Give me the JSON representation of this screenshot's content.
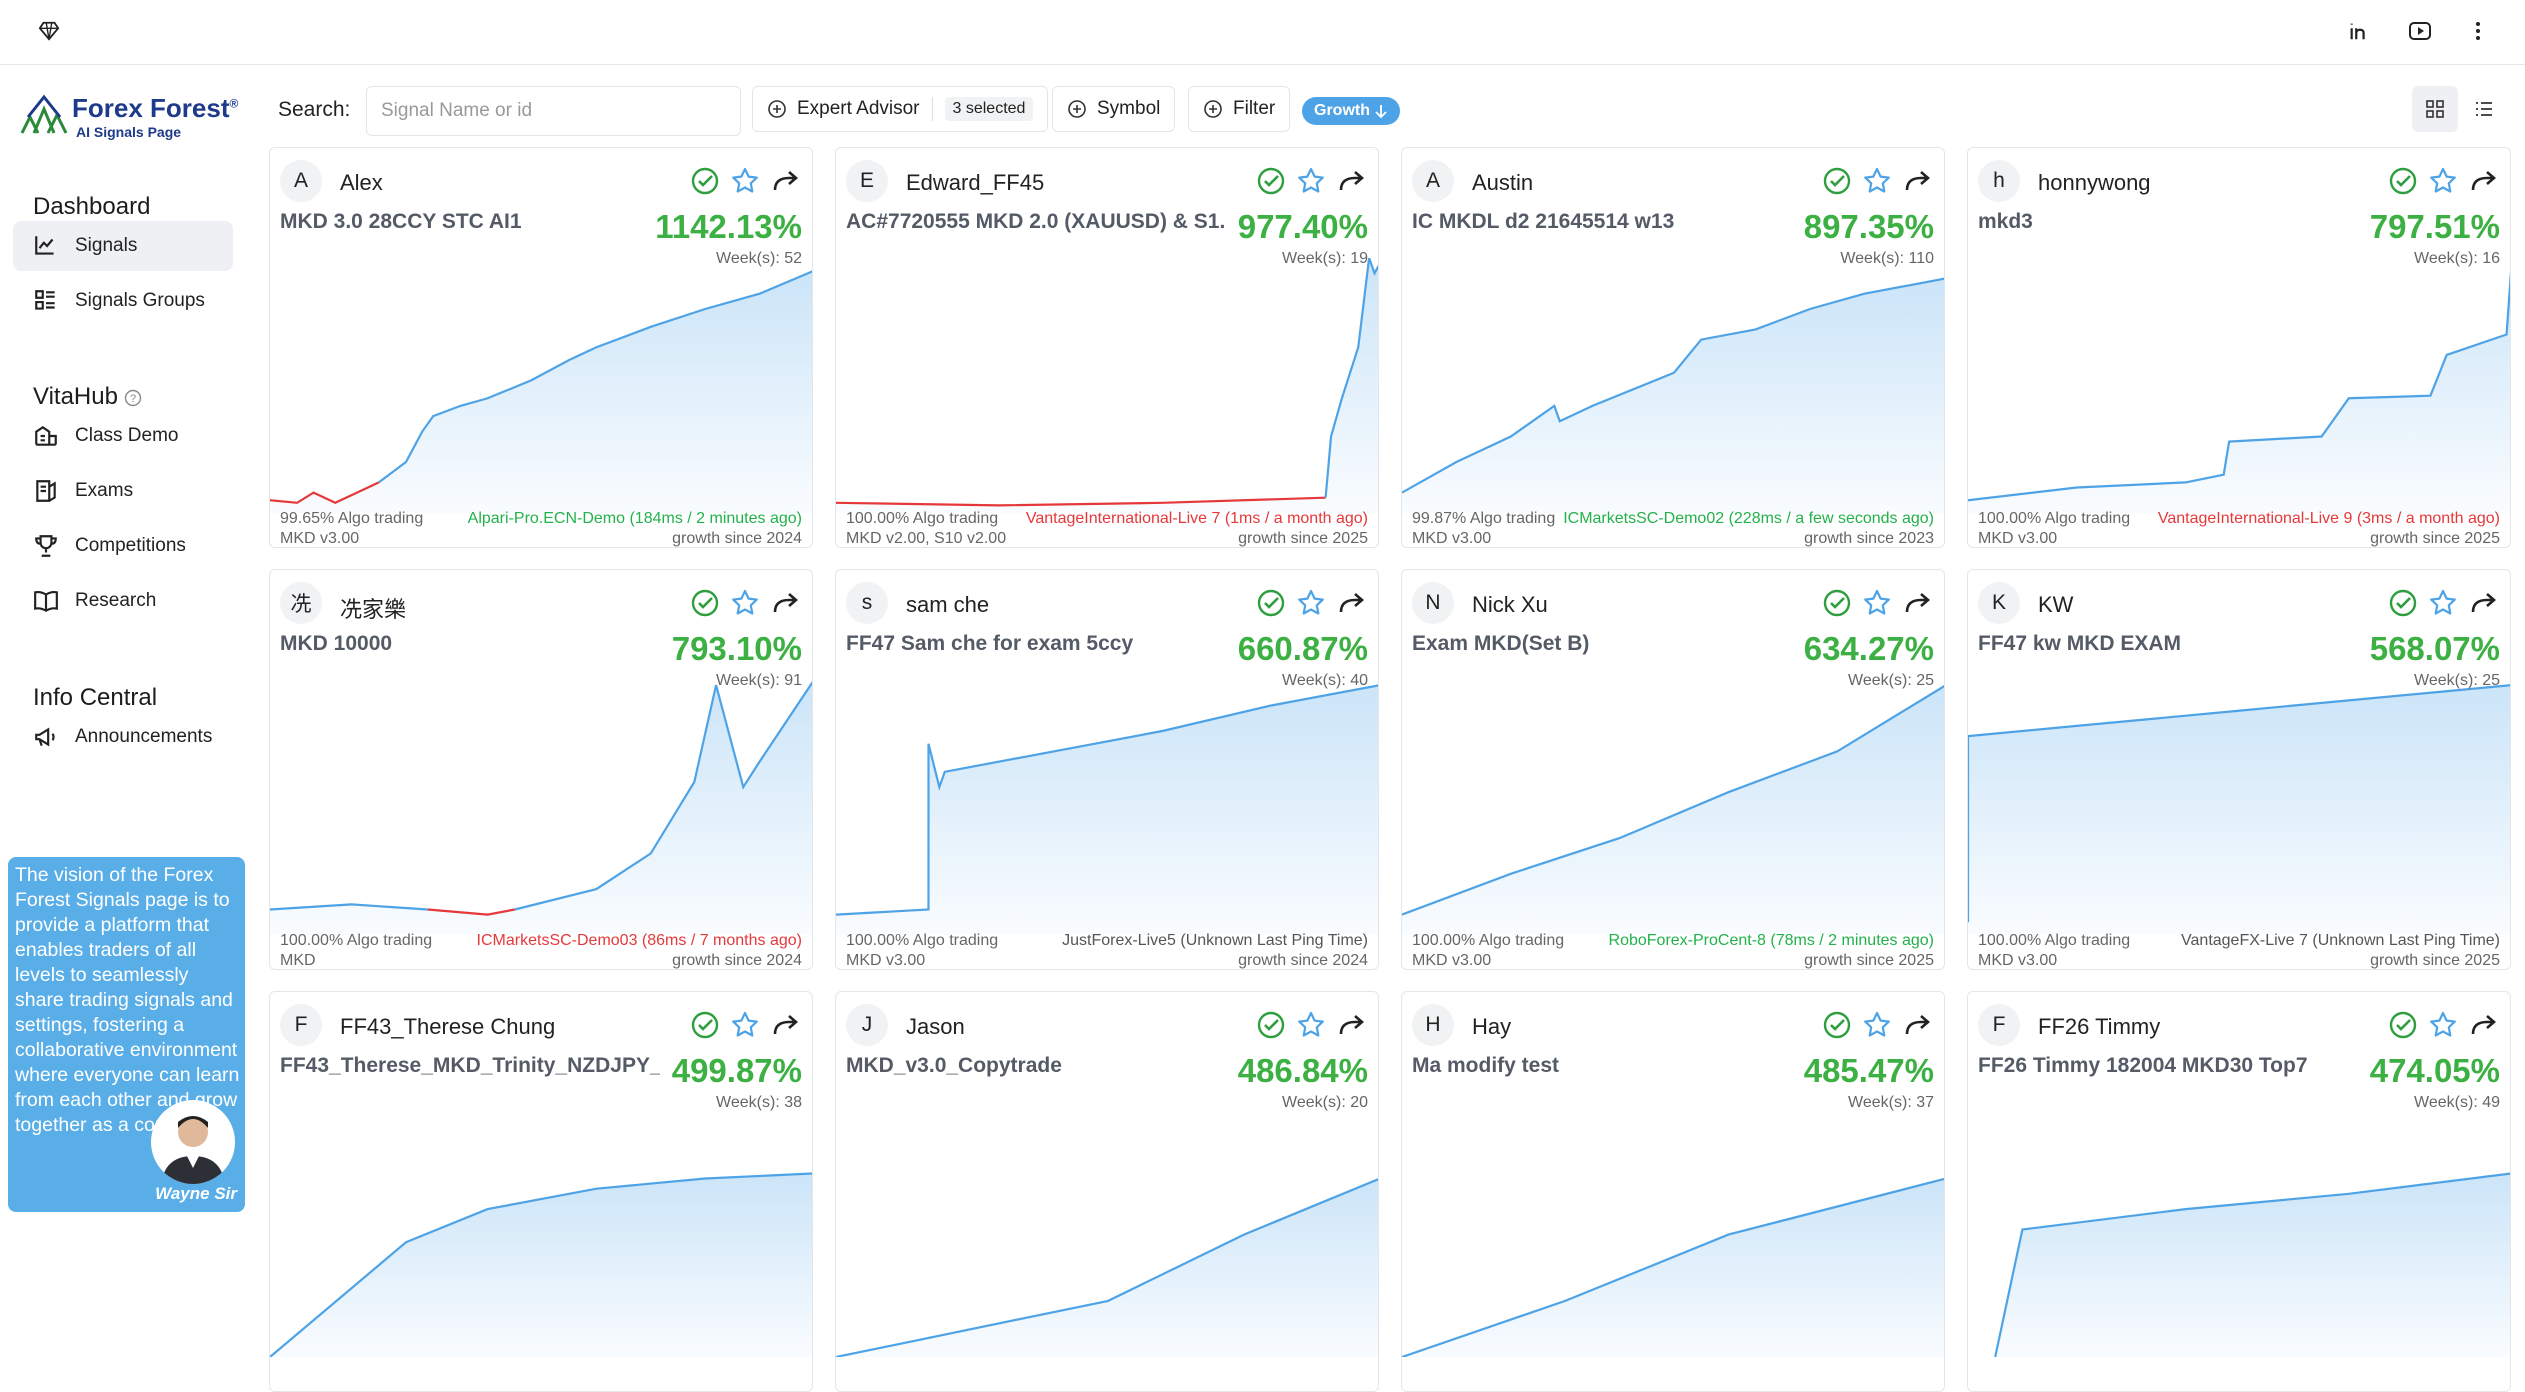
{
  "sidebar": {
    "logo": {
      "name": "Forex Forest",
      "mark": "®",
      "tagline": "AI Signals Page"
    },
    "sections": [
      {
        "title": "Dashboard",
        "items": [
          "Signals",
          "Signals Groups"
        ]
      },
      {
        "title": "VitaHub",
        "items": [
          "Class Demo",
          "Exams",
          "Competitions",
          "Research"
        ]
      },
      {
        "title": "Info Central",
        "items": [
          "Announcements"
        ]
      }
    ],
    "active": "Signals",
    "vision": {
      "text": "The vision of the Forex Forest Signals page is to provide a platform that enables traders of all levels to seamlessly share trading signals and settings, fostering a collaborative environment where everyone can learn from each other and grow together as a community.",
      "signature": "Wayne Sir"
    }
  },
  "toolbar": {
    "search_label": "Search:",
    "search_placeholder": "Signal Name or id",
    "expert_advisor": "Expert Advisor",
    "selected": "3 selected",
    "symbol": "Symbol",
    "filter": "Filter",
    "sort": "Growth"
  },
  "cards": [
    {
      "avatar": "A",
      "name": "Alex",
      "signal": "MKD 3.0 28CCY STC AI1",
      "growth": "1142.13%",
      "weeks": "Week(s): 52",
      "algo": "99.65% Algo trading",
      "server": "Alpari-Pro.ECN-Demo (184ms / 2 minutes ago)",
      "server_status": "online",
      "version": "MKD v3.00",
      "since": "growth since 2024"
    },
    {
      "avatar": "E",
      "name": "Edward_FF45",
      "signal": "AC#7720555 MKD 2.0 (XAUUSD) & S1...",
      "growth": "977.40%",
      "weeks": "Week(s): 19",
      "algo": "100.00% Algo trading",
      "server": "VantageInternational-Live 7 (1ms / a month ago)",
      "server_status": "offline",
      "version": "MKD v2.00, S10 v2.00",
      "since": "growth since 2025"
    },
    {
      "avatar": "A",
      "name": "Austin",
      "signal": "IC MKDL d2 21645514 w13",
      "growth": "897.35%",
      "weeks": "Week(s): 110",
      "algo": "99.87% Algo trading",
      "server": "ICMarketsSC-Demo02 (228ms / a few seconds ago)",
      "server_status": "online",
      "version": "MKD v3.00",
      "since": "growth since 2023"
    },
    {
      "avatar": "h",
      "name": "honnywong",
      "signal": "mkd3",
      "growth": "797.51%",
      "weeks": "Week(s): 16",
      "algo": "100.00% Algo trading",
      "server": "VantageInternational-Live 9 (3ms / a month ago)",
      "server_status": "offline",
      "version": "MKD v3.00",
      "since": "growth since 2025"
    },
    {
      "avatar": "冼",
      "name": "冼家樂",
      "signal": "MKD 10000",
      "growth": "793.10%",
      "weeks": "Week(s): 91",
      "algo": "100.00% Algo trading",
      "server": "ICMarketsSC-Demo03 (86ms / 7 months ago)",
      "server_status": "offline",
      "version": "MKD",
      "since": "growth since 2024"
    },
    {
      "avatar": "s",
      "name": "sam che",
      "signal": "FF47 Sam che for exam 5ccy",
      "growth": "660.87%",
      "weeks": "Week(s): 40",
      "algo": "100.00% Algo trading",
      "server": "JustForex-Live5 (Unknown Last Ping Time)",
      "server_status": "unknown",
      "version": "MKD v3.00",
      "since": "growth since 2024"
    },
    {
      "avatar": "N",
      "name": "Nick Xu",
      "signal": "Exam MKD(Set B)",
      "growth": "634.27%",
      "weeks": "Week(s): 25",
      "algo": "100.00% Algo trading",
      "server": "RoboForex-ProCent-8 (78ms / 2 minutes ago)",
      "server_status": "online",
      "version": "MKD v3.00",
      "since": "growth since 2025"
    },
    {
      "avatar": "K",
      "name": "KW",
      "signal": "FF47 kw MKD EXAM",
      "growth": "568.07%",
      "weeks": "Week(s): 25",
      "algo": "100.00% Algo trading",
      "server": "VantageFX-Live 7 (Unknown Last Ping Time)",
      "server_status": "unknown",
      "version": "MKD v3.00",
      "since": "growth since 2025"
    },
    {
      "avatar": "F",
      "name": "FF43_Therese Chung",
      "signal": "FF43_Therese_MKD_Trinity_NZDJPY_...",
      "growth": "499.87%",
      "weeks": "Week(s): 38"
    },
    {
      "avatar": "J",
      "name": "Jason",
      "signal": "MKD_v3.0_Copytrade",
      "growth": "486.84%",
      "weeks": "Week(s): 20"
    },
    {
      "avatar": "H",
      "name": "Hay",
      "signal": "Ma modify test",
      "growth": "485.47%",
      "weeks": "Week(s): 37"
    },
    {
      "avatar": "F",
      "name": "FF26 Timmy",
      "signal": "FF26 Timmy 182004 MKD30 Top7",
      "growth": "474.05%",
      "weeks": "Week(s): 49"
    }
  ]
}
